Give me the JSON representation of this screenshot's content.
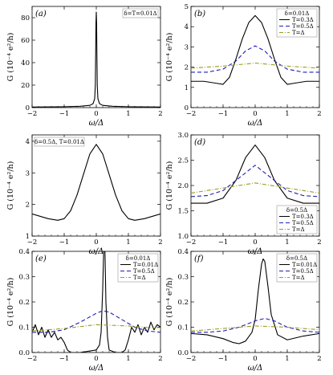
{
  "chart_data": [
    {
      "type": "line",
      "panel_label": "(a)",
      "xlabel": "ω/Δ",
      "ylabel": "G (10⁻⁴ e²/h)",
      "xlim": [
        -2,
        2
      ],
      "ylim": [
        0,
        90
      ],
      "xticks": [
        "−2",
        "−1",
        "0",
        "1",
        "2"
      ],
      "yticks": [
        0,
        20,
        40,
        60,
        80
      ],
      "legend_header": "δ=T=0.01Δ",
      "legend_position": "top-right",
      "series": [
        {
          "name": "",
          "color": "#000000",
          "dash": "",
          "x": [
            -2,
            -1,
            -0.5,
            -0.2,
            -0.1,
            -0.05,
            -0.03,
            -0.02,
            -0.01,
            0,
            0.01,
            0.02,
            0.03,
            0.05,
            0.1,
            0.2,
            0.5,
            1,
            2
          ],
          "y": [
            0.5,
            0.8,
            1.2,
            2,
            3.5,
            8,
            20,
            45,
            75,
            85,
            75,
            45,
            20,
            8,
            3.5,
            2,
            1.2,
            0.8,
            0.5
          ]
        }
      ]
    },
    {
      "type": "line",
      "panel_label": "(b)",
      "xlabel": "ω/Δ",
      "ylabel": "G (10⁻⁴ e²/h)",
      "xlim": [
        -2,
        2
      ],
      "ylim": [
        0,
        5
      ],
      "xticks": [
        "−2",
        "−1",
        "0",
        "1",
        "2"
      ],
      "yticks": [
        0,
        1,
        2,
        3,
        4,
        5
      ],
      "legend_header": "δ=0.01Δ",
      "legend_position": "top-right",
      "series": [
        {
          "name": "T=0.3Δ",
          "color": "#000000",
          "dash": "",
          "x": [
            -2,
            -1.6,
            -1.2,
            -1,
            -0.8,
            -0.6,
            -0.4,
            -0.2,
            0,
            0.2,
            0.4,
            0.6,
            0.8,
            1,
            1.2,
            1.6,
            2
          ],
          "y": [
            1.3,
            1.3,
            1.2,
            1.15,
            1.5,
            2.4,
            3.4,
            4.2,
            4.55,
            4.2,
            3.4,
            2.4,
            1.5,
            1.15,
            1.2,
            1.3,
            1.3
          ]
        },
        {
          "name": "T=0.5Δ",
          "color": "#1f1fb4",
          "dash": "5,3",
          "x": [
            -2,
            -1.5,
            -1,
            -0.6,
            -0.3,
            0,
            0.3,
            0.6,
            1,
            1.5,
            2
          ],
          "y": [
            1.75,
            1.75,
            1.9,
            2.3,
            2.8,
            3.05,
            2.8,
            2.3,
            1.9,
            1.75,
            1.75
          ]
        },
        {
          "name": "T=Δ",
          "color": "#9c9c1e",
          "dash": "5,2,1,2",
          "x": [
            -2,
            -1,
            0,
            1,
            2
          ],
          "y": [
            1.95,
            2.05,
            2.2,
            2.05,
            1.95
          ]
        }
      ]
    },
    {
      "type": "line",
      "panel_label": "(c)",
      "xlabel": "ω/Δ",
      "ylabel": "G (10⁻⁴ e²/h)",
      "xlim": [
        -2,
        2
      ],
      "ylim": [
        1,
        4.2
      ],
      "xticks": [
        "−2",
        "−1",
        "0",
        "1",
        "2"
      ],
      "yticks": [
        1,
        2,
        3,
        4
      ],
      "legend_header": "δ=0.5Δ, T=0.01Δ",
      "legend_position": "top-left",
      "series": [
        {
          "name": "",
          "color": "#000000",
          "dash": "",
          "x": [
            -2,
            -1.5,
            -1.2,
            -1,
            -0.8,
            -0.6,
            -0.4,
            -0.2,
            0,
            0.2,
            0.4,
            0.6,
            0.8,
            1,
            1.2,
            1.5,
            2
          ],
          "y": [
            1.7,
            1.55,
            1.5,
            1.55,
            1.8,
            2.3,
            2.95,
            3.6,
            3.9,
            3.6,
            2.95,
            2.3,
            1.8,
            1.55,
            1.5,
            1.55,
            1.7
          ]
        }
      ]
    },
    {
      "type": "line",
      "panel_label": "(d)",
      "xlabel": "ω/Δ",
      "ylabel": "G (10⁻⁴ e²/h)",
      "xlim": [
        -2,
        2
      ],
      "ylim": [
        1,
        3
      ],
      "xticks": [
        "−2",
        "−1",
        "0",
        "1",
        "2"
      ],
      "yticks": [
        "1.0",
        "1.5",
        "2.0",
        "2.5",
        "3.0"
      ],
      "legend_header": "δ=0.5Δ",
      "legend_position": "bottom-right",
      "series": [
        {
          "name": "T=0.3Δ",
          "color": "#000000",
          "dash": "",
          "x": [
            -2,
            -1.5,
            -1,
            -0.6,
            -0.3,
            0,
            0.3,
            0.6,
            1,
            1.5,
            2
          ],
          "y": [
            1.65,
            1.65,
            1.75,
            2.1,
            2.55,
            2.8,
            2.55,
            2.1,
            1.75,
            1.65,
            1.65
          ]
        },
        {
          "name": "T=0.5Δ",
          "color": "#1f1fb4",
          "dash": "5,3",
          "x": [
            -2,
            -1.5,
            -1,
            -0.5,
            0,
            0.5,
            1,
            1.5,
            2
          ],
          "y": [
            1.78,
            1.8,
            1.9,
            2.15,
            2.4,
            2.15,
            1.9,
            1.8,
            1.78
          ]
        },
        {
          "name": "T=Δ",
          "color": "#9c9c1e",
          "dash": "5,2,1,2",
          "x": [
            -2,
            -1,
            0,
            1,
            2
          ],
          "y": [
            1.85,
            1.95,
            2.05,
            1.95,
            1.85
          ]
        }
      ]
    },
    {
      "type": "line",
      "panel_label": "(e)",
      "xlabel": "ω/Δ",
      "ylabel": "G (10⁻⁴ e²/h)",
      "xlim": [
        -2,
        2
      ],
      "ylim": [
        0,
        0.4
      ],
      "xticks": [
        "−2",
        "−1",
        "0",
        "1",
        "2"
      ],
      "yticks": [
        "0.0",
        "0.1",
        "0.2",
        "0.3",
        "0.4"
      ],
      "legend_header": "δ=0.01Δ",
      "legend_position": "top-right",
      "series": [
        {
          "name": "T=0.01Δ",
          "color": "#000000",
          "dash": "",
          "x": [
            -2,
            -1.9,
            -1.8,
            -1.7,
            -1.6,
            -1.5,
            -1.4,
            -1.3,
            -1.2,
            -1.1,
            -1,
            -0.9,
            -0.8,
            -0.5,
            0,
            0.1,
            0.15,
            0.2,
            0.23,
            0.25,
            0.27,
            0.3,
            0.35,
            0.4,
            0.6,
            0.8,
            0.9,
            1,
            1.1,
            1.2,
            1.3,
            1.4,
            1.5,
            1.6,
            1.7,
            1.8,
            1.9,
            2
          ],
          "y": [
            0.08,
            0.11,
            0.07,
            0.1,
            0.06,
            0.09,
            0.06,
            0.08,
            0.05,
            0.06,
            0.04,
            0.01,
            0.0,
            0.0,
            0.01,
            0.03,
            0.08,
            0.25,
            0.4,
            0.4,
            0.4,
            0.2,
            0.06,
            0.01,
            0.0,
            0.0,
            0.01,
            0.05,
            0.1,
            0.08,
            0.11,
            0.07,
            0.1,
            0.08,
            0.12,
            0.09,
            0.11,
            0.1
          ]
        },
        {
          "name": "T=0.5Δ",
          "color": "#1f1fb4",
          "dash": "5,3",
          "x": [
            -2,
            -1.5,
            -1,
            -0.5,
            0,
            0.2,
            0.4,
            0.8,
            1.2,
            1.6,
            2
          ],
          "y": [
            0.08,
            0.08,
            0.09,
            0.12,
            0.155,
            0.165,
            0.16,
            0.13,
            0.1,
            0.085,
            0.08
          ]
        },
        {
          "name": "T=Δ",
          "color": "#9c9c1e",
          "dash": "5,2,1,2",
          "x": [
            -2,
            -1,
            0,
            1,
            2
          ],
          "y": [
            0.085,
            0.095,
            0.11,
            0.105,
            0.095
          ]
        }
      ]
    },
    {
      "type": "line",
      "panel_label": "(f)",
      "xlabel": "ω/Δ",
      "ylabel": "G (10⁻⁴ e²/h)",
      "xlim": [
        -2,
        2
      ],
      "ylim": [
        0,
        0.4
      ],
      "xticks": [
        "−2",
        "−1",
        "0",
        "1",
        "2"
      ],
      "yticks": [
        "0.0",
        "0.1",
        "0.2",
        "0.3",
        "0.4"
      ],
      "legend_header": "δ=0.5Δ",
      "legend_position": "top-right",
      "series": [
        {
          "name": "T=0.01Δ",
          "color": "#000000",
          "dash": "",
          "x": [
            -2,
            -1.5,
            -1,
            -0.7,
            -0.5,
            -0.3,
            -0.1,
            0,
            0.1,
            0.2,
            0.25,
            0.3,
            0.4,
            0.5,
            0.7,
            1,
            1.5,
            2
          ],
          "y": [
            0.075,
            0.07,
            0.055,
            0.04,
            0.035,
            0.045,
            0.08,
            0.13,
            0.25,
            0.35,
            0.37,
            0.36,
            0.26,
            0.15,
            0.07,
            0.05,
            0.065,
            0.075
          ]
        },
        {
          "name": "T=0.5Δ",
          "color": "#1f1fb4",
          "dash": "5,3",
          "x": [
            -2,
            -1.5,
            -1,
            -0.5,
            0,
            0.3,
            0.6,
            1,
            1.5,
            2
          ],
          "y": [
            0.08,
            0.08,
            0.085,
            0.1,
            0.125,
            0.135,
            0.125,
            0.1,
            0.085,
            0.08
          ]
        },
        {
          "name": "T=Δ",
          "color": "#9c9c1e",
          "dash": "5,2,1,2",
          "x": [
            -2,
            -1,
            0,
            1,
            2
          ],
          "y": [
            0.085,
            0.095,
            0.105,
            0.1,
            0.09
          ]
        }
      ]
    }
  ]
}
